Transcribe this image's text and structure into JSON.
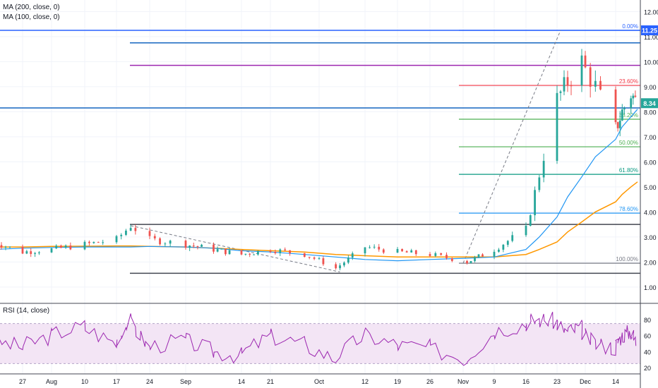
{
  "indicators": [
    "MA (200, close, 0)",
    "MA (100, close, 0)"
  ],
  "price_axis": {
    "ticks": [
      "1.00",
      "2.00",
      "3.00",
      "4.00",
      "5.00",
      "6.00",
      "7.00",
      "8.00",
      "9.00",
      "10.00",
      "11.00",
      "12.00"
    ],
    "markers": [
      {
        "label": "11.25",
        "value": 11.25,
        "color": "#2962ff"
      },
      {
        "label": "8.34",
        "value": 8.34,
        "color": "#26a69a"
      }
    ]
  },
  "rsi": {
    "title": "RSI (14, close)",
    "ticks": [
      "20",
      "40",
      "60",
      "80"
    ],
    "band": [
      30,
      70
    ]
  },
  "time_axis": [
    "27",
    "Aug",
    "10",
    "17",
    "24",
    "Sep",
    "14",
    "21",
    "Oct",
    "12",
    "19",
    "26",
    "Nov",
    "9",
    "16",
    "23",
    "Dec",
    "14"
  ],
  "fib_levels": [
    {
      "label": "0.00%",
      "value": 11.25,
      "color": "#2962ff"
    },
    {
      "label": "23.60%",
      "value": 9.05,
      "color": "#f23645"
    },
    {
      "label": "38.20%",
      "value": 7.7,
      "color": "#4caf50"
    },
    {
      "label": "50.00%",
      "value": 6.6,
      "color": "#4caf50"
    },
    {
      "label": "61.80%",
      "value": 5.5,
      "color": "#089981"
    },
    {
      "label": "78.60%",
      "value": 3.95,
      "color": "#2196f3"
    },
    {
      "label": "100.00%",
      "value": 1.95,
      "color": "#787b86"
    }
  ],
  "chart_data": {
    "type": "candlestick",
    "price_scale": "linear",
    "ylim": [
      0.5,
      12.5
    ],
    "rsi_ylim": [
      10,
      90
    ],
    "colors": {
      "up": "#26a69a",
      "down": "#ef5350",
      "ma200": "#ff9800",
      "ma100": "#2196f3",
      "rsi": "#9c27b0",
      "rsi_band": "#f3e5f5"
    },
    "horizontal_lines": [
      {
        "value": 11.25,
        "color": "#2962ff",
        "span": "full"
      },
      {
        "value": 10.75,
        "color": "#1565c0",
        "span": "from-aug-20"
      },
      {
        "value": 9.85,
        "color": "#9c27b0",
        "span": "from-aug-20"
      },
      {
        "value": 8.15,
        "color": "#1565c0",
        "span": "full"
      },
      {
        "value": 3.5,
        "color": "#434651",
        "span": "from-aug-20"
      },
      {
        "value": 1.55,
        "color": "#434651",
        "span": "from-aug-20"
      }
    ],
    "trend_lines": [
      {
        "from": {
          "date": "2020-08-20",
          "price": 3.45
        },
        "to": {
          "date": "2020-10-06",
          "price": 1.6
        },
        "style": "dashed"
      },
      {
        "from": {
          "date": "2020-11-01",
          "price": 1.95
        },
        "to": {
          "date": "2020-11-24",
          "price": 11.25
        },
        "style": "dashed"
      }
    ],
    "closes": {
      "dates": [
        "2020-07-20",
        "2020-07-27",
        "2020-08-03",
        "2020-08-10",
        "2020-08-17",
        "2020-08-20",
        "2020-08-24",
        "2020-08-31",
        "2020-09-07",
        "2020-09-14",
        "2020-09-21",
        "2020-09-28",
        "2020-10-05",
        "2020-10-12",
        "2020-10-19",
        "2020-10-26",
        "2020-11-02",
        "2020-11-09",
        "2020-11-16",
        "2020-11-19",
        "2020-11-23",
        "2020-11-26",
        "2020-11-30",
        "2020-12-03",
        "2020-12-07",
        "2020-12-10",
        "2020-12-14",
        "2020-12-17"
      ],
      "values": [
        2.8,
        2.4,
        2.5,
        2.7,
        2.9,
        3.45,
        2.9,
        2.7,
        2.5,
        2.3,
        2.5,
        2.3,
        1.75,
        2.6,
        2.4,
        2.3,
        2.0,
        2.5,
        3.3,
        5.5,
        8.5,
        9.2,
        10.0,
        9.0,
        7.3,
        8.0,
        8.7,
        8.34
      ]
    },
    "ma200": [
      2.6,
      2.6,
      2.62,
      2.63,
      2.64,
      2.64,
      2.62,
      2.6,
      2.55,
      2.5,
      2.45,
      2.4,
      2.3,
      2.25,
      2.2,
      2.2,
      2.2,
      2.2,
      2.3,
      2.5,
      2.8,
      3.2,
      3.6,
      4.0,
      4.4,
      4.7,
      5.0,
      5.2
    ],
    "ma100": [
      2.5,
      2.55,
      2.58,
      2.6,
      2.6,
      2.6,
      2.62,
      2.6,
      2.55,
      2.45,
      2.4,
      2.3,
      2.2,
      2.1,
      2.05,
      2.1,
      2.15,
      2.2,
      2.5,
      3.0,
      3.8,
      4.6,
      5.4,
      6.2,
      6.9,
      7.4,
      7.8,
      8.1
    ],
    "rsi_values": [
      55,
      45,
      60,
      72,
      50,
      78,
      45,
      55,
      40,
      35,
      60,
      50,
      30,
      62,
      48,
      45,
      30,
      65,
      75,
      80,
      78,
      65,
      70,
      50,
      45,
      60,
      65,
      50
    ]
  }
}
